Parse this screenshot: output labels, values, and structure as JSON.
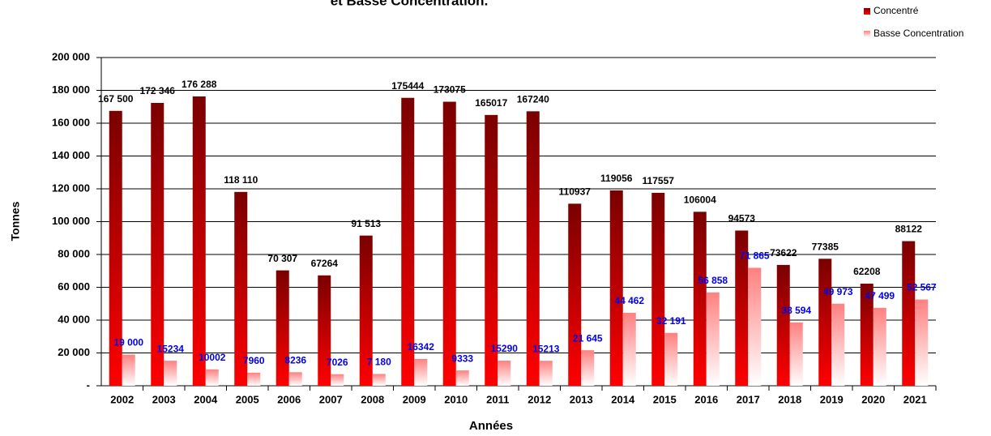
{
  "chart_data": {
    "type": "bar",
    "title": "et Basse Concentration.",
    "x_label": "Années",
    "y_label": "Tonnes",
    "categories": [
      "2002",
      "2003",
      "2004",
      "2005",
      "2006",
      "2007",
      "2008",
      "2009",
      "2010",
      "2011",
      "2012",
      "2013",
      "2014",
      "2015",
      "2016",
      "2017",
      "2018",
      "2019",
      "2020",
      "2021"
    ],
    "series": [
      {
        "name": "Concentré",
        "color": "#7a0000",
        "values": [
          167500,
          172346,
          176288,
          118110,
          70307,
          67264,
          91513,
          175444,
          173075,
          165017,
          167240,
          110937,
          119056,
          117557,
          106004,
          94573,
          73622,
          77385,
          62208,
          88122
        ],
        "value_labels": [
          "167 500",
          "172 346",
          "176 288",
          "118 110",
          "70 307",
          "67264",
          "91 513",
          "175444",
          "173075",
          "165017",
          "167240",
          "110937",
          "119056",
          "117557",
          "106004",
          "94573",
          "73622",
          "77385",
          "62208",
          "88122"
        ]
      },
      {
        "name": "Basse Concentration",
        "color": "#ff8080",
        "values": [
          19000,
          15234,
          10002,
          7960,
          8236,
          7026,
          7180,
          16342,
          9333,
          15290,
          15213,
          21645,
          44462,
          32191,
          56858,
          71865,
          38594,
          49973,
          47499,
          52567
        ],
        "value_labels": [
          "19 000",
          "15234",
          "10002",
          "7960",
          "8236",
          "7026",
          "7 180",
          "16342",
          "9333",
          "15290",
          "15213",
          "21 645",
          "44 462",
          "32 191",
          "56 858",
          "71 865",
          "38 594",
          "49 973",
          "47 499",
          "52 567"
        ]
      }
    ],
    "ylim": [
      0,
      200000
    ],
    "yticks": [
      {
        "value": 0,
        "label": "-"
      },
      {
        "value": 20000,
        "label": "20 000"
      },
      {
        "value": 40000,
        "label": "40 000"
      },
      {
        "value": 60000,
        "label": "60 000"
      },
      {
        "value": 80000,
        "label": "80 000"
      },
      {
        "value": 100000,
        "label": "100 000"
      },
      {
        "value": 120000,
        "label": "120 000"
      },
      {
        "value": 140000,
        "label": "140 000"
      },
      {
        "value": 160000,
        "label": "160 000"
      },
      {
        "value": 180000,
        "label": "180 000"
      },
      {
        "value": 200000,
        "label": "200 000"
      }
    ],
    "grid": true,
    "legend": "top-right"
  }
}
